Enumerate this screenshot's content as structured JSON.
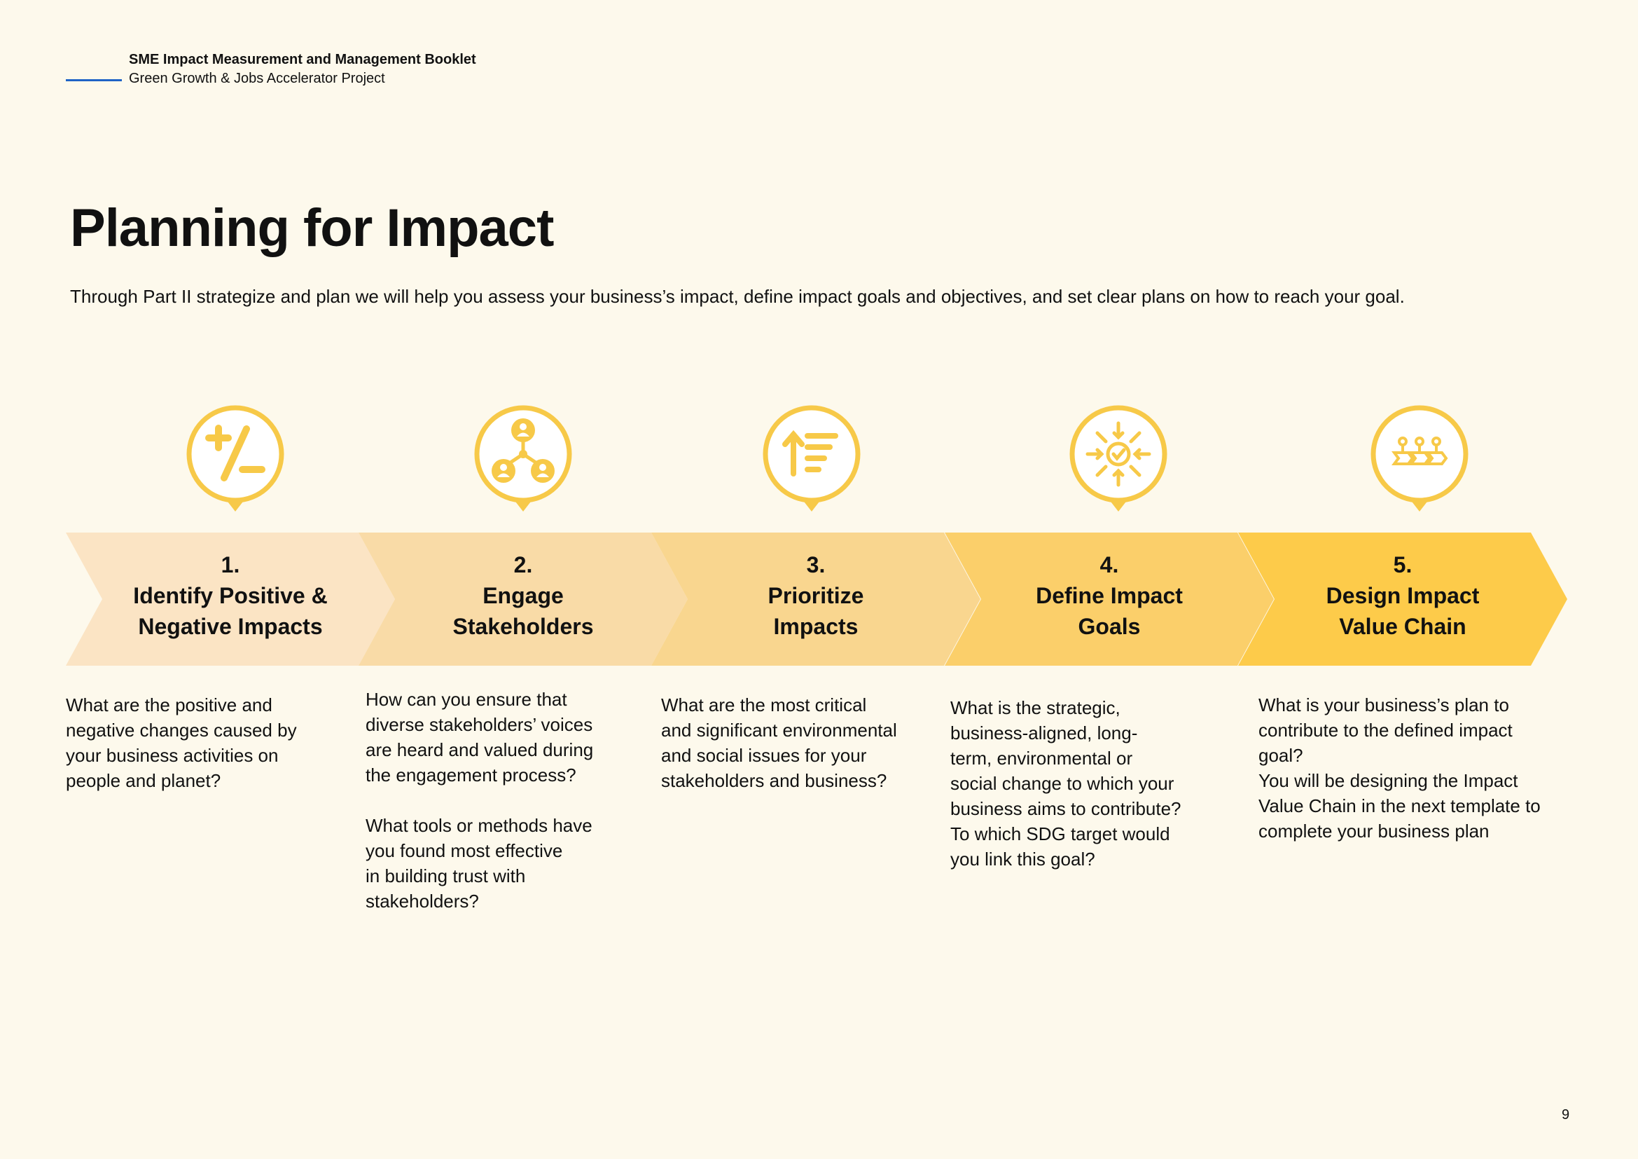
{
  "header": {
    "title": "SME Impact Measurement and Management Booklet",
    "subtitle": "Green Growth & Jobs Accelerator Project"
  },
  "page_title": "Planning for Impact",
  "intro": "Through Part II strategize and plan we will help you assess your business’s impact, define impact goals and objectives, and set clear plans on how to reach your goal.",
  "colors": {
    "accent_blue": "#1f63c6",
    "icon_yellow": "#f7c948",
    "step1": "#fbe4c4",
    "step2": "#f9dba7",
    "step3": "#f9d68f",
    "step4": "#fbcf6a",
    "step5": "#fdcb4a"
  },
  "steps": [
    {
      "number": "1.",
      "line1": "Identify Positive &",
      "line2": "Negative Impacts",
      "icon": "plus-minus-icon",
      "description": "What are the positive and\nnegative changes caused by\nyour business activities on\npeople and planet?"
    },
    {
      "number": "2.",
      "line1": "Engage",
      "line2": "Stakeholders",
      "icon": "stakeholders-network-icon",
      "description": "How can you ensure that\ndiverse stakeholders’ voices\nare heard and valued during\nthe engagement process?\n\nWhat tools or methods have\nyou found most effective\nin building trust with\nstakeholders?"
    },
    {
      "number": "3.",
      "line1": "Prioritize",
      "line2": "Impacts",
      "icon": "sort-priority-icon",
      "description": "What are the most critical\nand significant environmental\nand social issues for your\nstakeholders and business?"
    },
    {
      "number": "4.",
      "line1": "Define Impact",
      "line2": "Goals",
      "icon": "target-check-icon",
      "description": "What is the strategic,\nbusiness-aligned, long-\nterm, environmental or\nsocial change to which your\nbusiness aims to contribute?\nTo which SDG target would\nyou link this goal?"
    },
    {
      "number": "5.",
      "line1": "Design Impact",
      "line2": "Value Chain",
      "icon": "value-chain-icon",
      "description": "What is your business’s plan to\ncontribute to the defined impact\ngoal?\nYou will be designing the Impact\nValue Chain in the next template to\ncomplete your business plan"
    }
  ],
  "page_number": "9"
}
